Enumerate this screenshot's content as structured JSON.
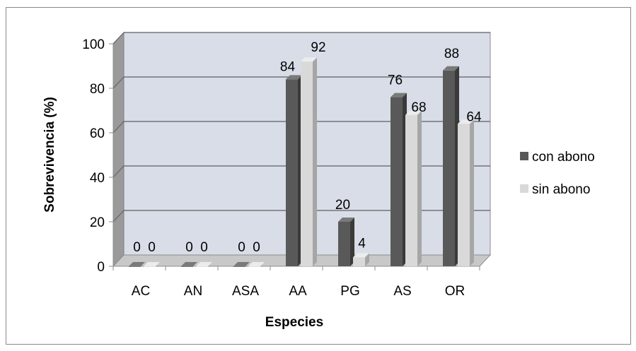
{
  "chart_data": {
    "type": "bar",
    "style": "3d-clustered",
    "categories": [
      "AC",
      "AN",
      "ASA",
      "AA",
      "PG",
      "AS",
      "OR"
    ],
    "series": [
      {
        "name": "con abono",
        "values": [
          0,
          0,
          0,
          84,
          20,
          76,
          88
        ],
        "color": "#595959",
        "side_color": "#3a3a3a",
        "top_color": "#7a7a7a"
      },
      {
        "name": "sin abono",
        "values": [
          0,
          0,
          0,
          92,
          4,
          68,
          64
        ],
        "color": "#d9d9d9",
        "side_color": "#a6a6a6",
        "top_color": "#ececec"
      }
    ],
    "xlabel": "Especies",
    "ylabel": "Sobrevivencia (%)",
    "ylim": [
      0,
      100
    ],
    "yticks": [
      0,
      20,
      40,
      60,
      80,
      100
    ],
    "grid": true,
    "legend": "right",
    "data_labels": true,
    "wall_color": "#d8dde8",
    "floor_color": "#c8c8c8"
  }
}
